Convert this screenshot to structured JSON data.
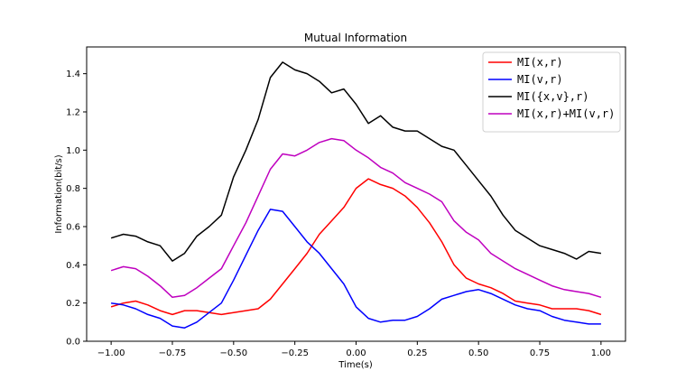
{
  "chart_data": {
    "type": "line",
    "title": "Mutual Information",
    "xlabel": "Time(s)",
    "ylabel": "Information(bit/s)",
    "xlim": [
      -1.1,
      1.1
    ],
    "ylim": [
      0.0,
      1.54
    ],
    "xticks": [
      -1.0,
      -0.75,
      -0.5,
      -0.25,
      0.0,
      0.25,
      0.5,
      0.75,
      1.0
    ],
    "xtick_labels": [
      "−1.00",
      "−0.75",
      "−0.50",
      "−0.25",
      "0.00",
      "0.25",
      "0.50",
      "0.75",
      "1.00"
    ],
    "yticks": [
      0.0,
      0.2,
      0.4,
      0.6,
      0.8,
      1.0,
      1.2,
      1.4
    ],
    "ytick_labels": [
      "0.0",
      "0.2",
      "0.4",
      "0.6",
      "0.8",
      "1.0",
      "1.2",
      "1.4"
    ],
    "grid": false,
    "legend_position": "top-right",
    "series": [
      {
        "name": "MI(x,r)",
        "color": "#ff0000",
        "x": [
          -1.0,
          -0.95,
          -0.9,
          -0.85,
          -0.8,
          -0.75,
          -0.7,
          -0.65,
          -0.6,
          -0.55,
          -0.5,
          -0.45,
          -0.4,
          -0.35,
          -0.3,
          -0.25,
          -0.2,
          -0.15,
          -0.1,
          -0.05,
          0.0,
          0.05,
          0.1,
          0.15,
          0.2,
          0.25,
          0.3,
          0.35,
          0.4,
          0.45,
          0.5,
          0.55,
          0.6,
          0.65,
          0.7,
          0.75,
          0.8,
          0.85,
          0.9,
          0.95,
          1.0
        ],
        "values": [
          0.18,
          0.2,
          0.21,
          0.19,
          0.16,
          0.14,
          0.16,
          0.16,
          0.15,
          0.14,
          0.15,
          0.16,
          0.17,
          0.22,
          0.3,
          0.38,
          0.46,
          0.56,
          0.63,
          0.7,
          0.8,
          0.85,
          0.82,
          0.8,
          0.76,
          0.7,
          0.62,
          0.52,
          0.4,
          0.33,
          0.3,
          0.28,
          0.25,
          0.21,
          0.2,
          0.19,
          0.17,
          0.17,
          0.17,
          0.16,
          0.14
        ]
      },
      {
        "name": "MI(v,r)",
        "color": "#0000ff",
        "x": [
          -1.0,
          -0.95,
          -0.9,
          -0.85,
          -0.8,
          -0.75,
          -0.7,
          -0.65,
          -0.6,
          -0.55,
          -0.5,
          -0.45,
          -0.4,
          -0.35,
          -0.3,
          -0.25,
          -0.2,
          -0.15,
          -0.1,
          -0.05,
          0.0,
          0.05,
          0.1,
          0.15,
          0.2,
          0.25,
          0.3,
          0.35,
          0.4,
          0.45,
          0.5,
          0.55,
          0.6,
          0.65,
          0.7,
          0.75,
          0.8,
          0.85,
          0.9,
          0.95,
          1.0
        ],
        "values": [
          0.2,
          0.19,
          0.17,
          0.14,
          0.12,
          0.08,
          0.07,
          0.1,
          0.15,
          0.2,
          0.32,
          0.45,
          0.58,
          0.69,
          0.68,
          0.6,
          0.52,
          0.46,
          0.38,
          0.3,
          0.18,
          0.12,
          0.1,
          0.11,
          0.11,
          0.13,
          0.17,
          0.22,
          0.24,
          0.26,
          0.27,
          0.25,
          0.22,
          0.19,
          0.17,
          0.16,
          0.13,
          0.11,
          0.1,
          0.09,
          0.09
        ]
      },
      {
        "name": "MI({x,v},r)",
        "color": "#000000",
        "x": [
          -1.0,
          -0.95,
          -0.9,
          -0.85,
          -0.8,
          -0.75,
          -0.7,
          -0.65,
          -0.6,
          -0.55,
          -0.5,
          -0.45,
          -0.4,
          -0.35,
          -0.3,
          -0.25,
          -0.2,
          -0.15,
          -0.1,
          -0.05,
          0.0,
          0.05,
          0.1,
          0.15,
          0.2,
          0.25,
          0.3,
          0.35,
          0.4,
          0.45,
          0.5,
          0.55,
          0.6,
          0.65,
          0.7,
          0.75,
          0.8,
          0.85,
          0.9,
          0.95,
          1.0
        ],
        "values": [
          0.54,
          0.56,
          0.55,
          0.52,
          0.5,
          0.42,
          0.46,
          0.55,
          0.6,
          0.66,
          0.86,
          1.0,
          1.16,
          1.38,
          1.46,
          1.42,
          1.4,
          1.36,
          1.3,
          1.32,
          1.24,
          1.14,
          1.18,
          1.12,
          1.1,
          1.1,
          1.06,
          1.02,
          1.0,
          0.92,
          0.84,
          0.76,
          0.66,
          0.58,
          0.54,
          0.5,
          0.48,
          0.46,
          0.43,
          0.47,
          0.46
        ]
      },
      {
        "name": "MI(x,r)+MI(v,r)",
        "color": "#bf00bf",
        "x": [
          -1.0,
          -0.95,
          -0.9,
          -0.85,
          -0.8,
          -0.75,
          -0.7,
          -0.65,
          -0.6,
          -0.55,
          -0.5,
          -0.45,
          -0.4,
          -0.35,
          -0.3,
          -0.25,
          -0.2,
          -0.15,
          -0.1,
          -0.05,
          0.0,
          0.05,
          0.1,
          0.15,
          0.2,
          0.25,
          0.3,
          0.35,
          0.4,
          0.45,
          0.5,
          0.55,
          0.6,
          0.65,
          0.7,
          0.75,
          0.8,
          0.85,
          0.9,
          0.95,
          1.0
        ],
        "values": [
          0.37,
          0.39,
          0.38,
          0.34,
          0.29,
          0.23,
          0.24,
          0.28,
          0.33,
          0.38,
          0.5,
          0.62,
          0.76,
          0.9,
          0.98,
          0.97,
          1.0,
          1.04,
          1.06,
          1.05,
          1.0,
          0.96,
          0.91,
          0.88,
          0.83,
          0.8,
          0.77,
          0.73,
          0.63,
          0.57,
          0.53,
          0.46,
          0.42,
          0.38,
          0.35,
          0.32,
          0.29,
          0.27,
          0.26,
          0.25,
          0.23
        ]
      }
    ]
  }
}
